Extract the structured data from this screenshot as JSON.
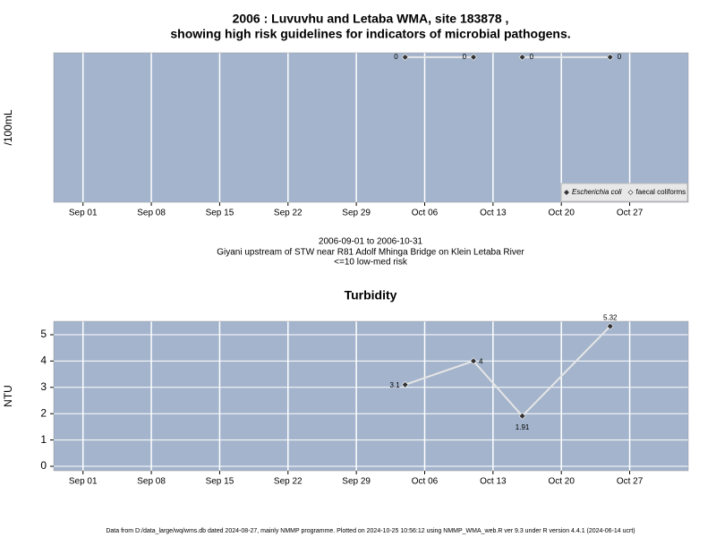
{
  "chart_data": [
    {
      "type": "line",
      "title": "2006 : Luvuvhu and Letaba WMA, site 183878 ,",
      "subtitle": "showing high risk guidelines for indicators of microbial pathogens.",
      "ylabel": "/100mL",
      "x": [
        "2006-10-04",
        "2006-10-11",
        "2006-10-16",
        "2006-10-25"
      ],
      "series": [
        {
          "name": "Escherichia coli",
          "color": "#333333",
          "values": [
            0,
            0,
            null,
            null
          ]
        },
        {
          "name": "faecal coliforms",
          "color": "#333333",
          "values": [
            null,
            null,
            0,
            0
          ]
        }
      ],
      "xlim": [
        "2006-08-29",
        "2006-11-02"
      ],
      "xticks": [
        {
          "value": "2006-09-01",
          "label": "Sep 01"
        },
        {
          "value": "2006-09-08",
          "label": "Sep 08"
        },
        {
          "value": "2006-09-15",
          "label": "Sep 15"
        },
        {
          "value": "2006-09-22",
          "label": "Sep 22"
        },
        {
          "value": "2006-09-29",
          "label": "Sep 29"
        },
        {
          "value": "2006-10-06",
          "label": "Oct 06"
        },
        {
          "value": "2006-10-13",
          "label": "Oct 13"
        },
        {
          "value": "2006-10-20",
          "label": "Oct 20"
        },
        {
          "value": "2006-10-27",
          "label": "Oct 27"
        }
      ],
      "ylim": [
        -1,
        0.03
      ],
      "grid": "x",
      "legend": "bottom right"
    },
    {
      "type": "line",
      "title": "Turbidity",
      "ylabel": "NTU",
      "x": [
        "2006-10-04",
        "2006-10-11",
        "2006-10-16",
        "2006-10-25"
      ],
      "series": [
        {
          "name": "Turbidity",
          "color": "#333333",
          "values": [
            3.1,
            4,
            1.91,
            5.32
          ]
        }
      ],
      "xlim": [
        "2006-08-29",
        "2006-11-02"
      ],
      "xticks": [
        {
          "value": "2006-09-01",
          "label": "Sep 01"
        },
        {
          "value": "2006-09-08",
          "label": "Sep 08"
        },
        {
          "value": "2006-09-15",
          "label": "Sep 15"
        },
        {
          "value": "2006-09-22",
          "label": "Sep 22"
        },
        {
          "value": "2006-09-29",
          "label": "Sep 29"
        },
        {
          "value": "2006-10-06",
          "label": "Oct 06"
        },
        {
          "value": "2006-10-13",
          "label": "Oct 13"
        },
        {
          "value": "2006-10-20",
          "label": "Oct 20"
        },
        {
          "value": "2006-10-27",
          "label": "Oct 27"
        }
      ],
      "ylim": [
        -0.17,
        5.51
      ],
      "yticks": [
        0,
        1,
        2,
        3,
        4,
        5
      ],
      "grid": "both"
    }
  ],
  "period": "2006-09-01 to 2006-10-31",
  "site": "Giyani upstream of STW near R81 Adolf Mhinga Bridge on Klein Letaba River",
  "guideline": "<=10 low-med risk",
  "footer": "Data from D:/data_large/wq/wms.db dated 2024-08-27, mainly NMMP programme. Plotted on 2024-10-25 10:56:12 using NMMP_WMA_web.R ver 9.3 under R version 4.4.1 (2024-06-14 ucrt)"
}
